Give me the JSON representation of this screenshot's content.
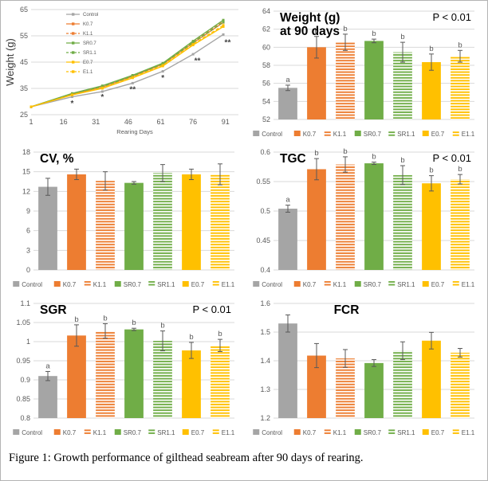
{
  "caption": "Figure 1: Growth performance of gilthead seabream after 90 days of rearing.",
  "palette": {
    "gray": "#A5A5A5",
    "orange": "#ED7D31",
    "green": "#70AD47",
    "yellow": "#FFC000",
    "axis_text": "#595959",
    "grid_line": "#D9D9D9",
    "error_bar": "#595959",
    "annotation_text": "#404040"
  },
  "groups": [
    "Control",
    "K0.7",
    "K1.1",
    "SR0.7",
    "SR1.1",
    "E0.7",
    "E1.1"
  ],
  "group_styles": {
    "Control": {
      "color": "#A5A5A5",
      "pattern": "solid",
      "dash": false
    },
    "K0.7": {
      "color": "#ED7D31",
      "pattern": "solid",
      "dash": false
    },
    "K1.1": {
      "color": "#ED7D31",
      "pattern": "stripes",
      "dash": true
    },
    "SR0.7": {
      "color": "#70AD47",
      "pattern": "solid",
      "dash": false
    },
    "SR1.1": {
      "color": "#70AD47",
      "pattern": "stripes",
      "dash": true
    },
    "E0.7": {
      "color": "#FFC000",
      "pattern": "solid",
      "dash": false
    },
    "E1.1": {
      "color": "#FFC000",
      "pattern": "stripes",
      "dash": true
    }
  },
  "chart_data": [
    {
      "id": "growth",
      "type": "line",
      "title": [],
      "xlabel": "Rearing Days",
      "ylabel": "Weight (g)",
      "xlim": [
        1,
        97
      ],
      "ylim": [
        25,
        65
      ],
      "xticks": [
        1,
        16,
        31,
        46,
        61,
        76,
        91
      ],
      "yticks": [
        25,
        35,
        45,
        55,
        65
      ],
      "grid": "horizontal",
      "legend_position": "top-left-inside",
      "x": [
        1,
        20,
        34,
        48,
        62,
        76,
        90
      ],
      "series": [
        {
          "name": "Control",
          "values": [
            28,
            31.8,
            33.8,
            37.0,
            41.5,
            48.0,
            55.5
          ]
        },
        {
          "name": "K0.7",
          "values": [
            28,
            32.8,
            35.5,
            39.6,
            44.2,
            52.3,
            60.1
          ]
        },
        {
          "name": "K1.1",
          "values": [
            28,
            33.0,
            35.8,
            39.8,
            44.4,
            52.6,
            60.5
          ]
        },
        {
          "name": "SR0.7",
          "values": [
            28,
            33.1,
            36.0,
            40.0,
            44.6,
            53.0,
            61.0
          ]
        },
        {
          "name": "SR1.1",
          "values": [
            28,
            32.9,
            35.7,
            39.7,
            44.3,
            52.4,
            60.2
          ]
        },
        {
          "name": "E0.7",
          "values": [
            28,
            32.5,
            35.0,
            39.0,
            43.5,
            51.5,
            58.5
          ]
        },
        {
          "name": "E1.1",
          "values": [
            28,
            32.6,
            35.2,
            39.2,
            43.8,
            51.8,
            59.0
          ]
        }
      ],
      "annotations": [
        {
          "x": 20,
          "y": 29.3,
          "text": "*"
        },
        {
          "x": 34,
          "y": 31.7,
          "text": "*"
        },
        {
          "x": 48,
          "y": 34.6,
          "text": "**"
        },
        {
          "x": 62,
          "y": 39.0,
          "text": "*"
        },
        {
          "x": 78,
          "y": 45.4,
          "text": "**"
        },
        {
          "x": 92,
          "y": 52.4,
          "text": "**"
        }
      ]
    },
    {
      "id": "weight90",
      "type": "bar",
      "title": [
        "Weight (g)",
        "at 90 days"
      ],
      "title_align": "left",
      "p_label": "P < 0.01",
      "ylim": [
        52,
        64
      ],
      "yticks": [
        52,
        54,
        56,
        58,
        60,
        62,
        64
      ],
      "values": [
        55.5,
        60.0,
        60.55,
        60.7,
        59.45,
        58.35,
        59.0
      ],
      "errors": [
        0.3,
        1.2,
        0.9,
        0.2,
        1.1,
        0.9,
        0.65
      ],
      "letters": [
        "a",
        "b",
        "b",
        "b",
        "b",
        "b",
        "b"
      ]
    },
    {
      "id": "cv",
      "type": "bar",
      "title": [
        "CV, %"
      ],
      "title_align": "left",
      "p_label": null,
      "ylim": [
        0,
        18
      ],
      "yticks": [
        0,
        3,
        6,
        9,
        12,
        15,
        18
      ],
      "values": [
        12.7,
        14.6,
        13.6,
        13.3,
        14.8,
        14.6,
        14.6
      ],
      "errors": [
        1.3,
        0.8,
        1.4,
        0.2,
        1.3,
        0.8,
        1.6
      ],
      "letters": null
    },
    {
      "id": "tgc",
      "type": "bar",
      "title": [
        "TGC"
      ],
      "title_align": "left",
      "p_label": "P < 0.01",
      "ylim": [
        0.4,
        0.6
      ],
      "yticks": [
        0.4,
        0.45,
        0.5,
        0.55,
        0.6
      ],
      "values": [
        0.504,
        0.571,
        0.579,
        0.581,
        0.561,
        0.547,
        0.554
      ],
      "errors": [
        0.006,
        0.018,
        0.013,
        0.002,
        0.016,
        0.013,
        0.008
      ],
      "letters": [
        "a",
        "b",
        "b",
        "b",
        "b",
        "b",
        "b"
      ]
    },
    {
      "id": "sgr",
      "type": "bar",
      "title": [
        "SGR"
      ],
      "title_align": "left",
      "p_label": "P < 0.01",
      "ylim": [
        0.8,
        1.1
      ],
      "yticks": [
        0.8,
        0.85,
        0.9,
        0.95,
        1,
        1.05,
        1.1
      ],
      "values": [
        0.91,
        1.016,
        1.028,
        1.032,
        1.002,
        0.977,
        0.99
      ],
      "errors": [
        0.012,
        0.028,
        0.019,
        0.003,
        0.026,
        0.021,
        0.016
      ],
      "letters": [
        "a",
        "b",
        "b",
        "b",
        "b",
        "b",
        "b"
      ]
    },
    {
      "id": "fcr",
      "type": "bar",
      "title": [
        "FCR"
      ],
      "title_align": "center",
      "p_label": null,
      "ylim": [
        1.2,
        1.6
      ],
      "yticks": [
        1.2,
        1.3,
        1.4,
        1.5,
        1.6
      ],
      "values": [
        1.53,
        1.418,
        1.408,
        1.392,
        1.435,
        1.47,
        1.428
      ],
      "errors": [
        0.03,
        0.042,
        0.031,
        0.012,
        0.031,
        0.029,
        0.015
      ],
      "letters": null
    }
  ]
}
